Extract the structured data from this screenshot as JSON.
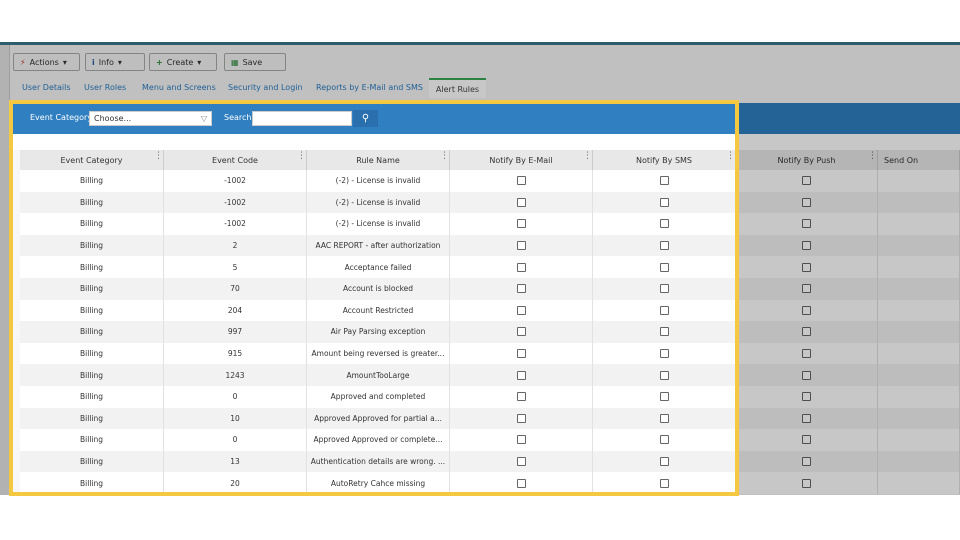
{
  "toolbar": {
    "buttons": [
      "Actions",
      "Info",
      "Create",
      "Save"
    ]
  },
  "tabs": {
    "items": [
      "User Details",
      "User Roles",
      "Menu and Screens",
      "Security and Login",
      "Reports by E-Mail and SMS",
      "Alert Rules"
    ]
  },
  "filter": {
    "category_label": "Event Category",
    "category_select": "Choose...",
    "search_label": "Search"
  },
  "table": {
    "columns": [
      "Event Category",
      "Event Code",
      "Rule Name",
      "Notify By E-Mail",
      "Notify By SMS",
      "Notify By Push",
      "Send On"
    ],
    "rows": [
      [
        "Billing",
        -1002,
        "(-2) - License is invalid"
      ],
      [
        "Billing",
        -1002,
        "(-2) - License is invalid"
      ],
      [
        "Billing",
        -1002,
        "(-2) - License is invalid"
      ],
      [
        "Billing",
        2,
        "AAC REPORT - after authorization"
      ],
      [
        "Billing",
        5,
        "Acceptance failed"
      ],
      [
        "Billing",
        70,
        "Account is blocked"
      ],
      [
        "Billing",
        204,
        "Account Restricted"
      ],
      [
        "Billing",
        997,
        "Air Pay Parsing exception"
      ],
      [
        "Billing",
        915,
        "Amount being reversed is greater..."
      ],
      [
        "Billing",
        1243,
        "AmountTooLarge"
      ],
      [
        "Billing",
        0,
        "Approved and completed"
      ],
      [
        "Billing",
        10,
        "Approved Approved for partial a..."
      ],
      [
        "Billing",
        0,
        "Approved Approved or complete..."
      ],
      [
        "Billing",
        13,
        "Authentication details are wrong. ..."
      ],
      [
        "Billing",
        20,
        "AutoRetry Cahce missing"
      ]
    ]
  }
}
